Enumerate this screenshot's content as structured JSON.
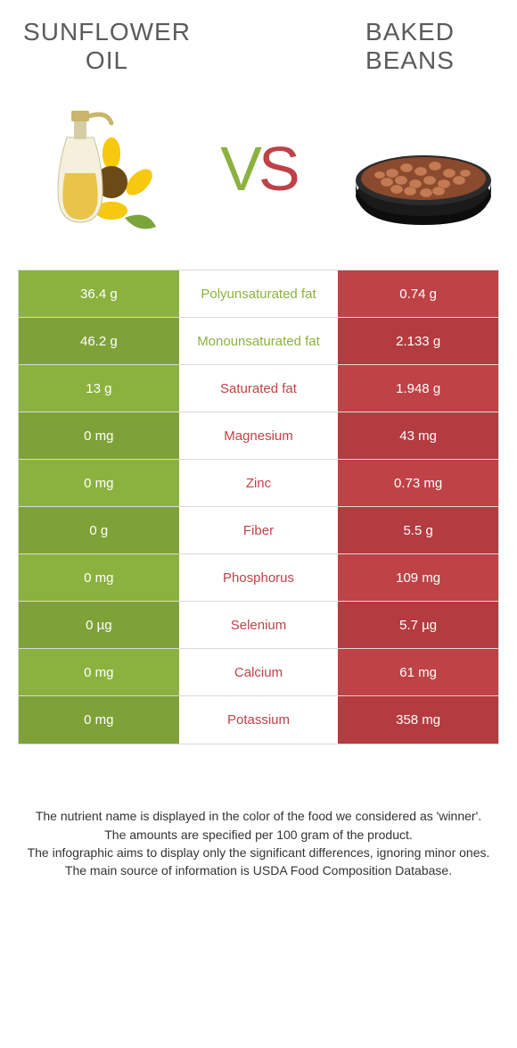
{
  "colors": {
    "left": "#8bb23e",
    "right": "#be4246",
    "left_dark": "#7fa238",
    "right_dark": "#b43b3f",
    "border": "#d9d9d9",
    "title_text": "#5b5b5b"
  },
  "left_food": {
    "title": "SUNFLOWER<br>OIL",
    "icon": "sunflower-oil-icon"
  },
  "right_food": {
    "title": "BAKED<br>BEANS",
    "icon": "baked-beans-icon"
  },
  "vs_label": "VS",
  "rows": [
    {
      "label": "Polyunsaturated fat",
      "left": "36.4 g",
      "right": "0.74 g",
      "winner": "left"
    },
    {
      "label": "Monounsaturated fat",
      "left": "46.2 g",
      "right": "2.133 g",
      "winner": "left"
    },
    {
      "label": "Saturated fat",
      "left": "13 g",
      "right": "1.948 g",
      "winner": "right"
    },
    {
      "label": "Magnesium",
      "left": "0 mg",
      "right": "43 mg",
      "winner": "right"
    },
    {
      "label": "Zinc",
      "left": "0 mg",
      "right": "0.73 mg",
      "winner": "right"
    },
    {
      "label": "Fiber",
      "left": "0 g",
      "right": "5.5 g",
      "winner": "right"
    },
    {
      "label": "Phosphorus",
      "left": "0 mg",
      "right": "109 mg",
      "winner": "right"
    },
    {
      "label": "Selenium",
      "left": "0 µg",
      "right": "5.7 µg",
      "winner": "right"
    },
    {
      "label": "Calcium",
      "left": "0 mg",
      "right": "61 mg",
      "winner": "right"
    },
    {
      "label": "Potassium",
      "left": "0 mg",
      "right": "358 mg",
      "winner": "right"
    }
  ],
  "footer_lines": [
    "The nutrient name is displayed in the color of the food we considered as 'winner'.",
    "The amounts are specified per 100 gram of the product.",
    "The infographic aims to display only the significant differences, ignoring minor ones.",
    "The main source of information is USDA Food Composition Database."
  ]
}
